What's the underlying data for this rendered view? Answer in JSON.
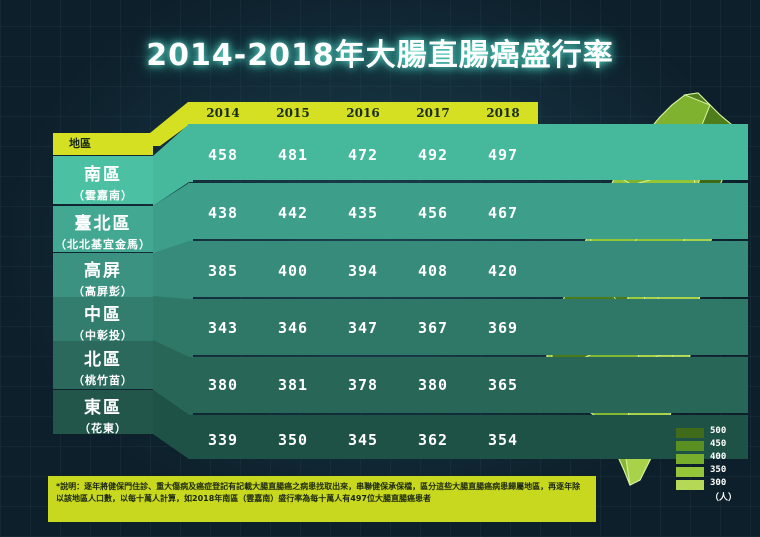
{
  "title": "2014-2018年大腸直腸癌盛行率",
  "region_header": "地區",
  "years": [
    "2014",
    "2015",
    "2016",
    "2017",
    "2018"
  ],
  "regions": [
    {
      "name": "南區",
      "sub": "（雲嘉南）",
      "values": [
        "458",
        "481",
        "472",
        "492",
        "497"
      ]
    },
    {
      "name": "臺北區",
      "sub": "（北北基宜金馬）",
      "values": [
        "438",
        "442",
        "435",
        "456",
        "467"
      ]
    },
    {
      "name": "高屏",
      "sub": "（高屏彭）",
      "values": [
        "385",
        "400",
        "394",
        "408",
        "420"
      ]
    },
    {
      "name": "中區",
      "sub": "（中彰投）",
      "values": [
        "343",
        "346",
        "347",
        "367",
        "369"
      ]
    },
    {
      "name": "北區",
      "sub": "（桃竹苗）",
      "values": [
        "380",
        "381",
        "378",
        "380",
        "365"
      ]
    },
    {
      "name": "東區",
      "sub": "（花東）",
      "values": [
        "339",
        "350",
        "345",
        "362",
        "354"
      ]
    }
  ],
  "legend": {
    "labels": [
      "500",
      "450",
      "400",
      "350",
      "300"
    ],
    "unit": "（人）",
    "colors": [
      "#3f6b1a",
      "#5a8f22",
      "#77af2c",
      "#95c639",
      "#b5d856"
    ]
  },
  "note": "*說明：逐年將健保門住診、重大傷病及癌症登記有記載大腸直腸癌之病患找取出來，串聯健保承保檔，區分這些大腸直腸癌病患歸屬地區，再逐年除以該地區人口數，以每十萬人計算，如2018年南區（雲嘉南）盛行率為每十萬人有497位大腸直腸癌患者",
  "colors": {
    "accent": "#d4e021",
    "band_colors": [
      "#46b89c",
      "#3d9f8a",
      "#378b7a",
      "#2f7868",
      "#286657",
      "#1f5246"
    ],
    "region_colors": [
      "#4cc0a2",
      "#43a892",
      "#3b9281",
      "#337d6f",
      "#2b695d",
      "#22564b"
    ]
  },
  "chart_data": {
    "type": "table",
    "title": "2014-2018年大腸直腸癌盛行率",
    "columns": [
      "2014",
      "2015",
      "2016",
      "2017",
      "2018"
    ],
    "rows": [
      "南區（雲嘉南）",
      "臺北區（北北基宜金馬）",
      "高屏（高屏彭）",
      "中區（中彰投）",
      "北區（桃竹苗）",
      "東區（花東）"
    ],
    "values": [
      [
        458,
        481,
        472,
        492,
        497
      ],
      [
        438,
        442,
        435,
        456,
        467
      ],
      [
        385,
        400,
        394,
        408,
        420
      ],
      [
        343,
        346,
        347,
        367,
        369
      ],
      [
        380,
        381,
        378,
        380,
        365
      ],
      [
        339,
        350,
        345,
        362,
        354
      ]
    ],
    "legend": [
      "500",
      "450",
      "400",
      "350",
      "300"
    ],
    "legend_unit": "（人）"
  }
}
